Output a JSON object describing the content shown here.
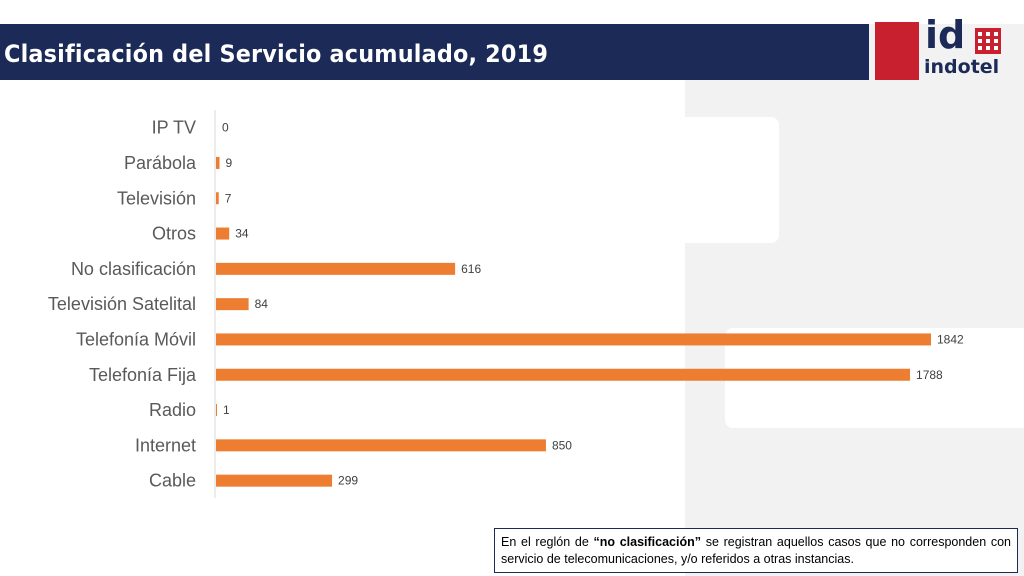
{
  "header": {
    "title": "Clasificación del Servicio acumulado, 2019"
  },
  "logo": {
    "mark": "id",
    "wordmark": "indotel"
  },
  "colors": {
    "title_bar": "#1b2a57",
    "bar": "#ed7d31",
    "logo_red": "#c8202f"
  },
  "chart_data": {
    "type": "bar",
    "orientation": "horizontal",
    "categories": [
      "IP TV",
      "Parábola",
      "Televisión",
      "Otros",
      "No clasificación",
      "Televisión Satelital",
      "Telefonía Móvil",
      "Telefonía Fija",
      "Radio",
      "Internet",
      "Cable"
    ],
    "values": [
      0,
      9,
      7,
      34,
      616,
      84,
      1842,
      1788,
      1,
      850,
      299
    ],
    "data_labels": true,
    "grid": false,
    "xlim": [
      0,
      1842
    ]
  },
  "note": {
    "prefix": "En el reglón de ",
    "bold": "“no clasificación”",
    "suffix": " se registran aquellos casos que no corresponden con servicio de telecomunicaciones, y/o referidos a otras instancias."
  }
}
